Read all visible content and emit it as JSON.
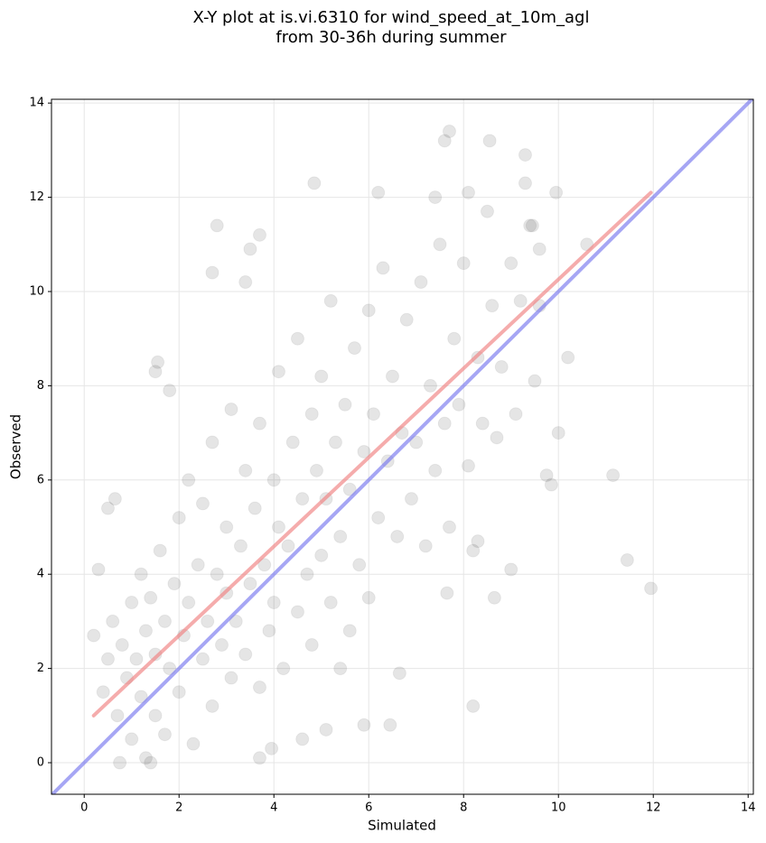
{
  "chart_data": {
    "type": "scatter",
    "title": [
      "X-Y plot at is.vi.6310 for wind_speed_at_10m_agl",
      "from 30-36h during summer"
    ],
    "xlabel": "Simulated",
    "ylabel": "Observed",
    "xlim": [
      -0.69,
      14.11
    ],
    "ylim": [
      -0.67,
      14.08
    ],
    "xticks": [
      0,
      2,
      4,
      6,
      8,
      10,
      12,
      14
    ],
    "yticks": [
      0,
      2,
      4,
      6,
      8,
      10,
      12,
      14
    ],
    "grid": true,
    "point_color": "#000000",
    "x": [
      11.95,
      11.45,
      11.15,
      10.2,
      9.45,
      9.3,
      9.3,
      7.7,
      7.6,
      8.55,
      4.85,
      2.8,
      3.7,
      3.5,
      2.7,
      3.4,
      6.2,
      9.95,
      7.4,
      8.1,
      10.6,
      8.2,
      6.45,
      5.9,
      5.1,
      0.75,
      1.3,
      1.4,
      3.7,
      3.95,
      0.2,
      0.3,
      0.5,
      0.65,
      1.55,
      1.5,
      1.8,
      9.6,
      9.75,
      9.85,
      9.0,
      8.65,
      7.65,
      8.3,
      8.2,
      10.0,
      9.5,
      6.65,
      5.4,
      4.6,
      0.4,
      0.5,
      0.6,
      0.7,
      0.8,
      0.9,
      1.0,
      1.0,
      1.1,
      1.2,
      1.2,
      1.3,
      1.4,
      1.5,
      1.5,
      1.6,
      1.7,
      1.7,
      1.8,
      1.9,
      2.0,
      2.0,
      2.1,
      2.2,
      2.2,
      2.3,
      2.4,
      2.5,
      2.5,
      2.6,
      2.7,
      2.7,
      2.8,
      2.9,
      3.0,
      3.0,
      3.1,
      3.1,
      3.2,
      3.3,
      3.4,
      3.4,
      3.5,
      3.6,
      3.7,
      3.7,
      3.8,
      3.9,
      4.0,
      4.0,
      4.1,
      4.1,
      4.2,
      4.3,
      4.4,
      4.5,
      4.5,
      4.6,
      4.7,
      4.8,
      4.8,
      4.9,
      5.0,
      5.0,
      5.1,
      5.2,
      5.2,
      5.3,
      5.4,
      5.5,
      5.6,
      5.6,
      5.7,
      5.8,
      5.9,
      6.0,
      6.0,
      6.1,
      6.2,
      6.3,
      6.4,
      6.5,
      6.6,
      6.7,
      6.8,
      6.9,
      7.0,
      7.1,
      7.2,
      7.3,
      7.4,
      7.5,
      7.6,
      7.7,
      7.8,
      7.9,
      8.0,
      8.1,
      8.3,
      8.4,
      8.5,
      8.6,
      8.7,
      8.8,
      9.0,
      9.1,
      9.2,
      9.4,
      9.6
    ],
    "y": [
      3.7,
      4.3,
      6.1,
      8.6,
      11.4,
      12.9,
      12.3,
      13.4,
      13.2,
      13.2,
      12.3,
      11.4,
      11.2,
      10.9,
      10.4,
      10.2,
      12.1,
      12.1,
      12.0,
      12.1,
      11.0,
      1.2,
      0.8,
      0.8,
      0.7,
      0.0,
      0.1,
      0.0,
      0.1,
      0.3,
      2.7,
      4.1,
      5.4,
      5.6,
      8.5,
      8.3,
      7.9,
      9.7,
      6.1,
      5.9,
      4.1,
      3.5,
      3.6,
      4.7,
      4.5,
      7.0,
      8.1,
      1.9,
      2.0,
      0.5,
      1.5,
      2.2,
      3.0,
      1.0,
      2.5,
      1.8,
      3.4,
      0.5,
      2.2,
      4.0,
      1.4,
      2.8,
      3.5,
      1.0,
      2.3,
      4.5,
      3.0,
      0.6,
      2.0,
      3.8,
      5.2,
      1.5,
      2.7,
      3.4,
      6.0,
      0.4,
      4.2,
      2.2,
      5.5,
      3.0,
      1.2,
      6.8,
      4.0,
      2.5,
      3.6,
      5.0,
      7.5,
      1.8,
      3.0,
      4.6,
      6.2,
      2.3,
      3.8,
      5.4,
      1.6,
      7.2,
      4.2,
      2.8,
      6.0,
      3.4,
      8.3,
      5.0,
      2.0,
      4.6,
      6.8,
      3.2,
      9.0,
      5.6,
      4.0,
      7.4,
      2.5,
      6.2,
      4.4,
      8.2,
      5.6,
      3.4,
      9.8,
      6.8,
      4.8,
      7.6,
      2.8,
      5.8,
      8.8,
      4.2,
      6.6,
      9.6,
      3.5,
      7.4,
      5.2,
      10.5,
      6.4,
      8.2,
      4.8,
      7.0,
      9.4,
      5.6,
      6.8,
      10.2,
      4.6,
      8.0,
      6.2,
      11.0,
      7.2,
      5.0,
      9.0,
      7.6,
      10.6,
      6.3,
      8.6,
      7.2,
      11.7,
      9.7,
      6.9,
      8.4,
      10.6,
      7.4,
      9.8,
      11.4,
      10.9
    ],
    "lines": [
      {
        "color": "#f08080",
        "x": [
          0.2,
          11.95
        ],
        "y": [
          1.0,
          12.1
        ]
      },
      {
        "color": "#7777ee",
        "x": [
          -0.69,
          14.11
        ],
        "y": [
          -0.69,
          14.11
        ]
      }
    ]
  }
}
